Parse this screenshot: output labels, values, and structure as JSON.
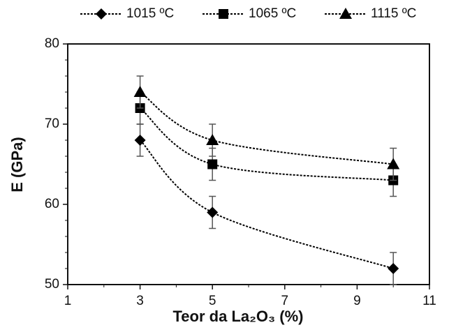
{
  "chart_data": {
    "type": "line",
    "xlabel": "Teor da La₂O₃ (%)",
    "ylabel": "E (GPa)",
    "x": [
      3,
      5,
      10
    ],
    "series": [
      {
        "name": "1015 ºC",
        "color": "#000000",
        "marker": "diamond",
        "values": [
          68,
          59,
          52
        ],
        "errors": [
          2,
          2,
          2
        ]
      },
      {
        "name": "1065 ºC",
        "color": "#000000",
        "marker": "square",
        "values": [
          72,
          65,
          63
        ],
        "errors": [
          2,
          2,
          2
        ]
      },
      {
        "name": "1115 ºC",
        "color": "#000000",
        "marker": "triangle",
        "values": [
          74,
          68,
          65
        ],
        "errors": [
          2,
          2,
          2
        ]
      }
    ],
    "xlim": [
      1,
      11
    ],
    "xticks": [
      1,
      3,
      5,
      7,
      9,
      11
    ],
    "xminorticks": [
      2,
      4,
      6,
      8,
      10
    ],
    "ylim": [
      50,
      80
    ],
    "yticks": [
      50,
      60,
      70,
      80
    ],
    "yminorticks": [
      52,
      54,
      56,
      58,
      62,
      64,
      66,
      68,
      72,
      74,
      76,
      78
    ],
    "grid": false,
    "legend": "top",
    "line_style": "dotted"
  }
}
